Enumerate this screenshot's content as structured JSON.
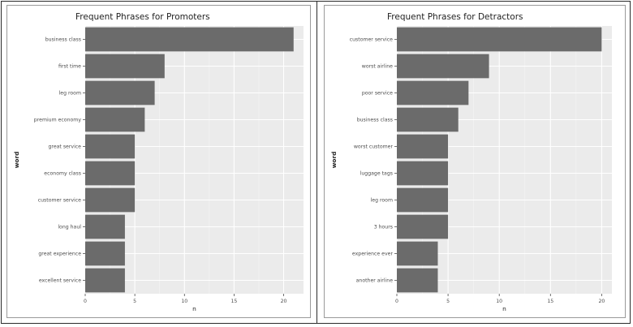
{
  "charts": [
    {
      "id": "promoters",
      "chart_data": {
        "type": "bar",
        "orientation": "horizontal",
        "title": "Frequent Phrases for Promoters",
        "xlabel": "n",
        "ylabel": "word",
        "xlim": [
          0,
          22
        ],
        "xticks": [
          0,
          5,
          10,
          15,
          20
        ],
        "grid": true,
        "bar_color": "#6b6b6b",
        "panel_color": "#ebebeb",
        "categories": [
          "business class",
          "first time",
          "leg room",
          "premium economy",
          "great service",
          "economy class",
          "customer service",
          "long haul",
          "great experience",
          "excellent service"
        ],
        "values": [
          21,
          8,
          7,
          6,
          5,
          5,
          5,
          4,
          4,
          4
        ]
      }
    },
    {
      "id": "detractors",
      "chart_data": {
        "type": "bar",
        "orientation": "horizontal",
        "title": "Frequent Phrases for Detractors",
        "xlabel": "n",
        "ylabel": "word",
        "xlim": [
          0,
          21
        ],
        "xticks": [
          0,
          5,
          10,
          15,
          20
        ],
        "grid": true,
        "bar_color": "#6b6b6b",
        "panel_color": "#ebebeb",
        "categories": [
          "customer service",
          "worst airline",
          "poor service",
          "business class",
          "worst customer",
          "luggage tags",
          "leg room",
          "3 hours",
          "experience ever",
          "another airline"
        ],
        "values": [
          20,
          9,
          7,
          6,
          5,
          5,
          5,
          5,
          4,
          4
        ]
      }
    }
  ]
}
